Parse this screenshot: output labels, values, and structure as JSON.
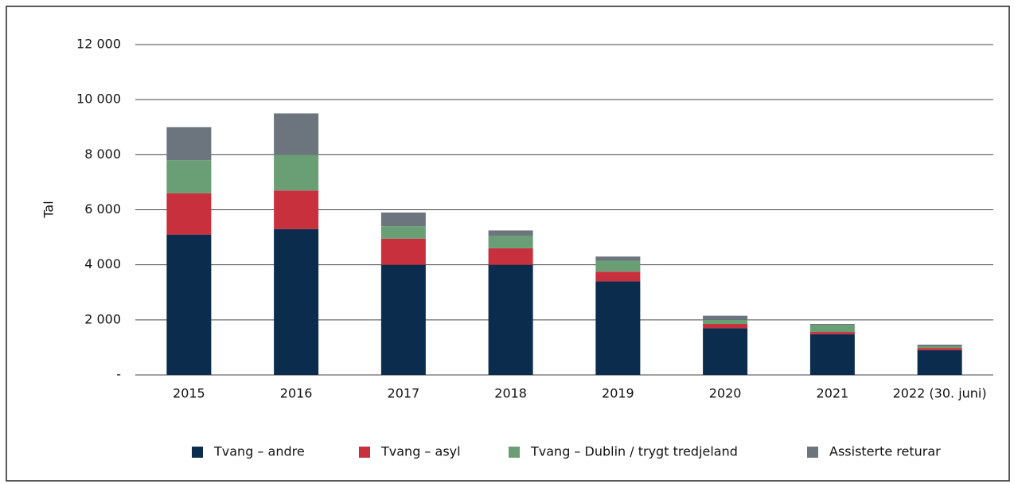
{
  "chart_data": {
    "type": "stacked_bar",
    "y_axis_label": "Tal",
    "categories": [
      "2015",
      "2016",
      "2017",
      "2018",
      "2019",
      "2020",
      "2021",
      "2022 (30. juni)"
    ],
    "series": [
      {
        "name": "Tvang – andre",
        "color": "#0c2c4e",
        "values": [
          5100,
          5300,
          4000,
          4000,
          3400,
          1700,
          1480,
          900
        ]
      },
      {
        "name": "Tvang – asyl",
        "color": "#c8303e",
        "values": [
          1500,
          1400,
          950,
          600,
          350,
          150,
          80,
          80
        ]
      },
      {
        "name": "Tvang – Dublin / trygt tredjeland",
        "color": "#6a9e74",
        "values": [
          1200,
          1300,
          450,
          450,
          400,
          150,
          260,
          60
        ]
      },
      {
        "name": "Assisterte returar",
        "color": "#6c757d",
        "values": [
          1200,
          1500,
          500,
          200,
          150,
          150,
          30,
          60
        ]
      }
    ],
    "ylim": [
      0,
      12000
    ],
    "yticks": [
      {
        "value": 0,
        "label": "-"
      },
      {
        "value": 2000,
        "label": "2 000"
      },
      {
        "value": 4000,
        "label": "4 000"
      },
      {
        "value": 6000,
        "label": "6 000"
      },
      {
        "value": 8000,
        "label": "8 000"
      },
      {
        "value": 10000,
        "label": "10 000"
      },
      {
        "value": 12000,
        "label": "12 000"
      }
    ],
    "grid": true,
    "legend": "bottom"
  }
}
